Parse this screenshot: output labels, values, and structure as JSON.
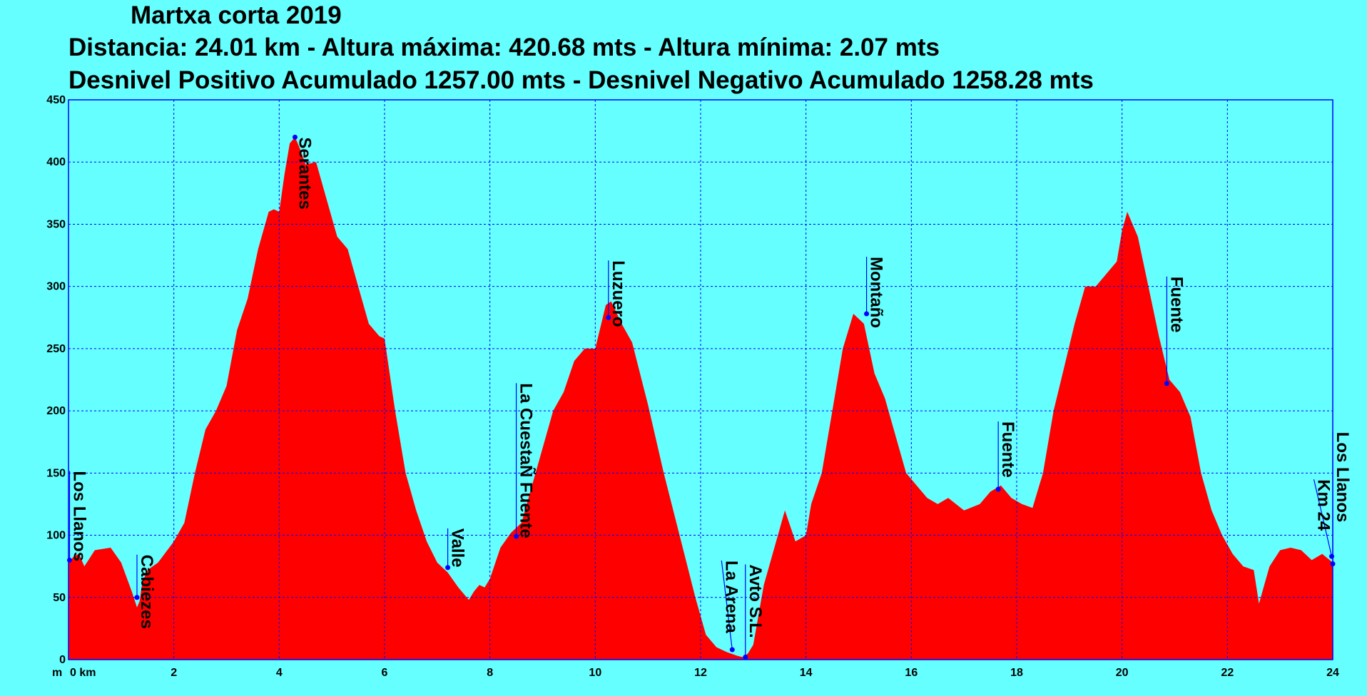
{
  "header": {
    "title": "Martxa corta 2019",
    "stats_line1": "Distancia: 24.01 km - Altura máxima: 420.68 mts - Altura mínima: 2.07 mts",
    "stats_line2": "Desnivel Positivo Acumulado 1257.00 mts - Desnivel Negativo Acumulado 1258.28 mts"
  },
  "chart_data": {
    "type": "area",
    "x_unit": "km",
    "y_unit": "m",
    "xlim": [
      0,
      24
    ],
    "ylim": [
      0,
      450
    ],
    "grid": true,
    "x_ticks": [
      0,
      2,
      4,
      6,
      8,
      10,
      12,
      14,
      16,
      18,
      20,
      22,
      24
    ],
    "x_tick_labels": [
      "0 km",
      "2",
      "4",
      "6",
      "8",
      "10",
      "12",
      "14",
      "16",
      "18",
      "20",
      "22",
      "24"
    ],
    "y_ticks": [
      0,
      50,
      100,
      150,
      200,
      250,
      300,
      350,
      400,
      450
    ],
    "y_axis_unit_label": "m",
    "fill_color": "#ff0000",
    "marker_color": "#0000ff",
    "line_color": "#0000ff",
    "profile": {
      "x": [
        0,
        0.1,
        0.2,
        0.3,
        0.5,
        0.8,
        1.0,
        1.2,
        1.3,
        1.35,
        1.4,
        1.5,
        1.7,
        2.0,
        2.2,
        2.4,
        2.6,
        2.8,
        3.0,
        3.2,
        3.4,
        3.6,
        3.8,
        3.9,
        4.0,
        4.1,
        4.2,
        4.3,
        4.4,
        4.5,
        4.7,
        4.9,
        5.1,
        5.3,
        5.5,
        5.7,
        5.9,
        6.0,
        6.2,
        6.4,
        6.6,
        6.8,
        7.0,
        7.2,
        7.4,
        7.6,
        7.7,
        7.8,
        7.9,
        8.0,
        8.2,
        8.4,
        8.6,
        8.8,
        9.0,
        9.2,
        9.4,
        9.6,
        9.8,
        10.0,
        10.2,
        10.3,
        10.5,
        10.7,
        11.0,
        11.3,
        11.6,
        11.9,
        12.1,
        12.3,
        12.5,
        12.7,
        12.8,
        12.9,
        13.0,
        13.2,
        13.4,
        13.6,
        13.8,
        14.0,
        14.1,
        14.3,
        14.5,
        14.7,
        14.9,
        15.1,
        15.3,
        15.5,
        15.7,
        15.9,
        16.1,
        16.3,
        16.5,
        16.7,
        17.0,
        17.3,
        17.5,
        17.7,
        17.9,
        18.1,
        18.3,
        18.5,
        18.7,
        18.9,
        19.1,
        19.3,
        19.5,
        19.7,
        19.9,
        20.0,
        20.1,
        20.3,
        20.5,
        20.7,
        20.9,
        21.1,
        21.3,
        21.5,
        21.7,
        21.9,
        22.1,
        22.3,
        22.5,
        22.6,
        22.7,
        22.8,
        23.0,
        23.2,
        23.4,
        23.6,
        23.8,
        24.0,
        24.01
      ],
      "y": [
        78,
        83,
        85,
        75,
        88,
        90,
        78,
        55,
        42,
        47,
        62,
        72,
        78,
        95,
        110,
        150,
        185,
        200,
        220,
        265,
        290,
        330,
        360,
        362,
        360,
        390,
        415,
        420,
        410,
        398,
        400,
        370,
        340,
        330,
        300,
        270,
        260,
        258,
        200,
        150,
        120,
        95,
        78,
        70,
        58,
        48,
        55,
        60,
        58,
        65,
        90,
        102,
        110,
        140,
        170,
        200,
        215,
        240,
        250,
        250,
        285,
        288,
        270,
        255,
        205,
        150,
        100,
        50,
        20,
        10,
        6,
        3,
        2,
        5,
        12,
        60,
        90,
        120,
        95,
        100,
        125,
        150,
        200,
        250,
        278,
        270,
        230,
        210,
        180,
        150,
        140,
        130,
        125,
        130,
        120,
        125,
        135,
        140,
        130,
        125,
        122,
        150,
        200,
        235,
        270,
        300,
        300,
        310,
        320,
        345,
        360,
        340,
        300,
        260,
        225,
        215,
        195,
        150,
        120,
        100,
        85,
        75,
        72,
        45,
        60,
        75,
        88,
        90,
        88,
        80,
        85,
        78,
        0
      ]
    },
    "waypoints": [
      {
        "name": "Los Llanos",
        "x": 0.02,
        "y": 80,
        "dir": "right",
        "dx": 0,
        "dy": -125
      },
      {
        "name": "Cabiezes",
        "x": 1.3,
        "y": 50,
        "dir": "right",
        "dx": 0,
        "dy": -60
      },
      {
        "name": "Serantes",
        "x": 4.3,
        "y": 420,
        "dir": "right",
        "dx": 0,
        "dy": 0
      },
      {
        "name": "Valle",
        "x": 7.2,
        "y": 74,
        "dir": "right",
        "dx": 0,
        "dy": -55
      },
      {
        "name": "La CuestaÑ Fuente",
        "x": 8.5,
        "y": 99,
        "dir": "right",
        "dx": 0,
        "dy": -215
      },
      {
        "name": "Luzuero",
        "x": 10.25,
        "y": 275,
        "dir": "right",
        "dx": 0,
        "dy": -80
      },
      {
        "name": "La Arena",
        "x": 12.6,
        "y": 8,
        "dir": "right",
        "dx": -15,
        "dy": -125
      },
      {
        "name": "Avto S.L.",
        "x": 12.85,
        "y": 2,
        "dir": "right",
        "dx": 0,
        "dy": -130
      },
      {
        "name": "Montaño",
        "x": 15.15,
        "y": 278,
        "dir": "right",
        "dx": 0,
        "dy": -80
      },
      {
        "name": "Fuente",
        "x": 17.65,
        "y": 137,
        "dir": "right",
        "dx": 0,
        "dy": -95
      },
      {
        "name": "Fuente",
        "x": 20.85,
        "y": 222,
        "dir": "right",
        "dx": 0,
        "dy": -150
      },
      {
        "name": "Km 24",
        "x": 23.98,
        "y": 83,
        "dir": "right",
        "dx": -25,
        "dy": -108
      },
      {
        "name": "Los Llanos",
        "x": 24.0,
        "y": 77,
        "dir": "right",
        "dx": 0,
        "dy": -185
      }
    ]
  }
}
